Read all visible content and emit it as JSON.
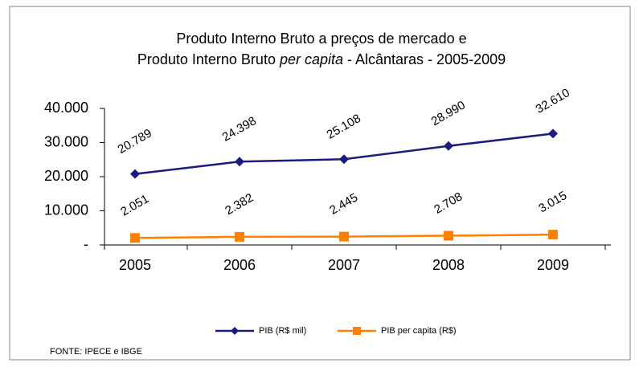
{
  "chart_data": {
    "type": "line",
    "title_lines": [
      [
        "Produto Interno Bruto a preços de mercado e"
      ],
      [
        "Produto Interno Bruto",
        "per capita",
        "- Alcântaras - 2005-2009"
      ]
    ],
    "categories": [
      "2005",
      "2006",
      "2007",
      "2008",
      "2009"
    ],
    "series": [
      {
        "name": "PIB (R$ mil)",
        "color": "#1a1a80",
        "marker": "diamond",
        "values": [
          20789,
          24398,
          25108,
          28990,
          32610
        ],
        "value_labels": [
          "20.789",
          "24.398",
          "25.108",
          "28.990",
          "32.610"
        ]
      },
      {
        "name": "PIB per capita (R$)",
        "color": "#ff8000",
        "marker": "square",
        "values": [
          2051,
          2382,
          2445,
          2708,
          3015
        ],
        "value_labels": [
          "2.051",
          "2.382",
          "2.445",
          "2.708",
          "3.015"
        ]
      }
    ],
    "ylim": [
      0,
      40000
    ],
    "yticks": [
      {
        "value": 0,
        "label": "-"
      },
      {
        "value": 10000,
        "label": "10.000"
      },
      {
        "value": 20000,
        "label": "20.000"
      },
      {
        "value": 30000,
        "label": "30.000"
      },
      {
        "value": 40000,
        "label": "40.000"
      }
    ],
    "legend": "bottom",
    "source": "FONTE: IPECE e IBGE"
  }
}
